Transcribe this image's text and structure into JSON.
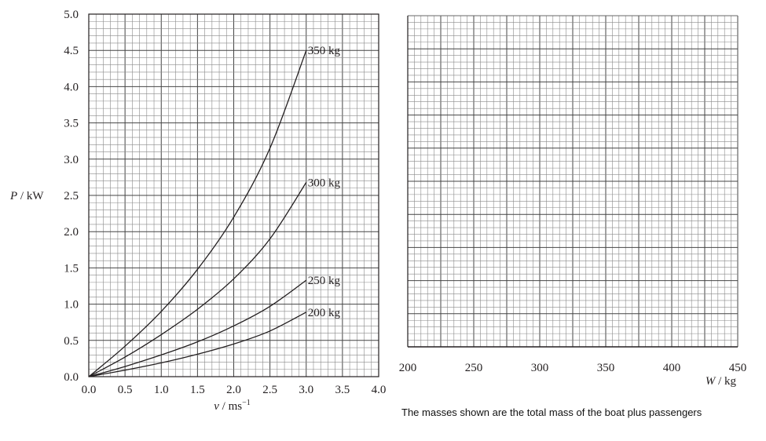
{
  "caption": "The masses shown are the total mass of the boat plus passengers",
  "colors": {
    "ink": "#231f20",
    "grid_minor": "#8a8a8a",
    "grid_major": "#444444"
  },
  "chart_data": [
    {
      "type": "line",
      "title": "",
      "xlabel_var": "v",
      "xlabel_unit": " / ms",
      "xlabel_sup": "−1",
      "ylabel_var": "P",
      "ylabel_unit": " / kW",
      "xlim": [
        0.0,
        4.0
      ],
      "ylim": [
        0.0,
        5.0
      ],
      "x_ticks": [
        "0.0",
        "0.5",
        "1.0",
        "1.5",
        "2.0",
        "2.5",
        "3.0",
        "3.5",
        "4.0"
      ],
      "y_ticks": [
        "0.0",
        "0.5",
        "1.0",
        "1.5",
        "2.0",
        "2.5",
        "3.0",
        "3.5",
        "4.0",
        "4.5",
        "5.0"
      ],
      "grid": true,
      "series": [
        {
          "name": "350 kg",
          "x": [
            0,
            0.5,
            1.0,
            1.5,
            2.0,
            2.5,
            3.0
          ],
          "y": [
            0,
            0.42,
            0.9,
            1.48,
            2.2,
            3.15,
            4.5
          ]
        },
        {
          "name": "300 kg",
          "x": [
            0,
            0.5,
            1.0,
            1.5,
            2.0,
            2.5,
            3.0
          ],
          "y": [
            0,
            0.27,
            0.58,
            0.93,
            1.35,
            1.9,
            2.68
          ]
        },
        {
          "name": "250 kg",
          "x": [
            0,
            0.5,
            1.0,
            1.5,
            2.0,
            2.5,
            3.0
          ],
          "y": [
            0,
            0.14,
            0.3,
            0.48,
            0.7,
            0.97,
            1.33
          ]
        },
        {
          "name": "200 kg",
          "x": [
            0,
            0.5,
            1.0,
            1.5,
            2.0,
            2.5,
            3.0
          ],
          "y": [
            0,
            0.09,
            0.19,
            0.31,
            0.45,
            0.63,
            0.89
          ]
        }
      ]
    },
    {
      "type": "line",
      "title": "",
      "xlabel_var": "W",
      "xlabel_unit": " / kg",
      "ylabel": "",
      "xlim": [
        200,
        450
      ],
      "x_ticks": [
        "200",
        "250",
        "300",
        "350",
        "400",
        "450"
      ],
      "grid": true,
      "series": []
    }
  ]
}
